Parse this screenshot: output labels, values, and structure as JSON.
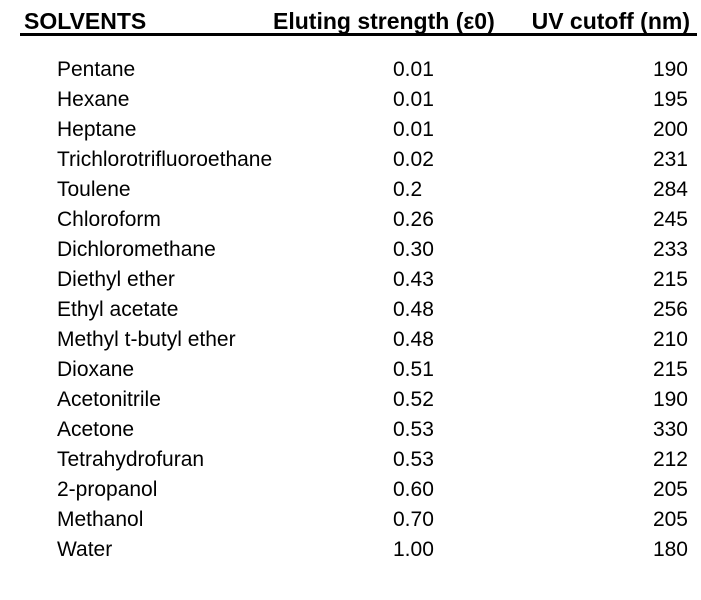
{
  "table": {
    "headers": {
      "solvent": "SOLVENTS",
      "strength": "Eluting strength (ε0)",
      "uv": "UV cutoff (nm)"
    },
    "rows": [
      {
        "name": "Pentane",
        "strength": "0.01",
        "uv": "190"
      },
      {
        "name": "Hexane",
        "strength": "0.01",
        "uv": "195"
      },
      {
        "name": "Heptane",
        "strength": "0.01",
        "uv": "200"
      },
      {
        "name": "Trichlorotrifluoroethane",
        "strength": "0.02",
        "uv": "231"
      },
      {
        "name": "Toulene",
        "strength": "0.2",
        "uv": "284"
      },
      {
        "name": "Chloroform",
        "strength": "0.26",
        "uv": "245"
      },
      {
        "name": "Dichloromethane",
        "strength": "0.30",
        "uv": "233"
      },
      {
        "name": "Diethyl ether",
        "strength": "0.43",
        "uv": "215"
      },
      {
        "name": "Ethyl acetate",
        "strength": "0.48",
        "uv": "256"
      },
      {
        "name": "Methyl t-butyl ether",
        "strength": "0.48",
        "uv": "210"
      },
      {
        "name": "Dioxane",
        "strength": "0.51",
        "uv": "215"
      },
      {
        "name": "Acetonitrile",
        "strength": "0.52",
        "uv": "190"
      },
      {
        "name": "Acetone",
        "strength": "0.53",
        "uv": "330"
      },
      {
        "name": "Tetrahydrofuran",
        "strength": "0.53",
        "uv": "212"
      },
      {
        "name": "2-propanol",
        "strength": "0.60",
        "uv": "205"
      },
      {
        "name": "Methanol",
        "strength": "0.70",
        "uv": "205"
      },
      {
        "name": "Water",
        "strength": "1.00",
        "uv": "180"
      }
    ]
  },
  "colors": {
    "text": "#000000",
    "background": "#ffffff",
    "header_rule": "#000000"
  }
}
